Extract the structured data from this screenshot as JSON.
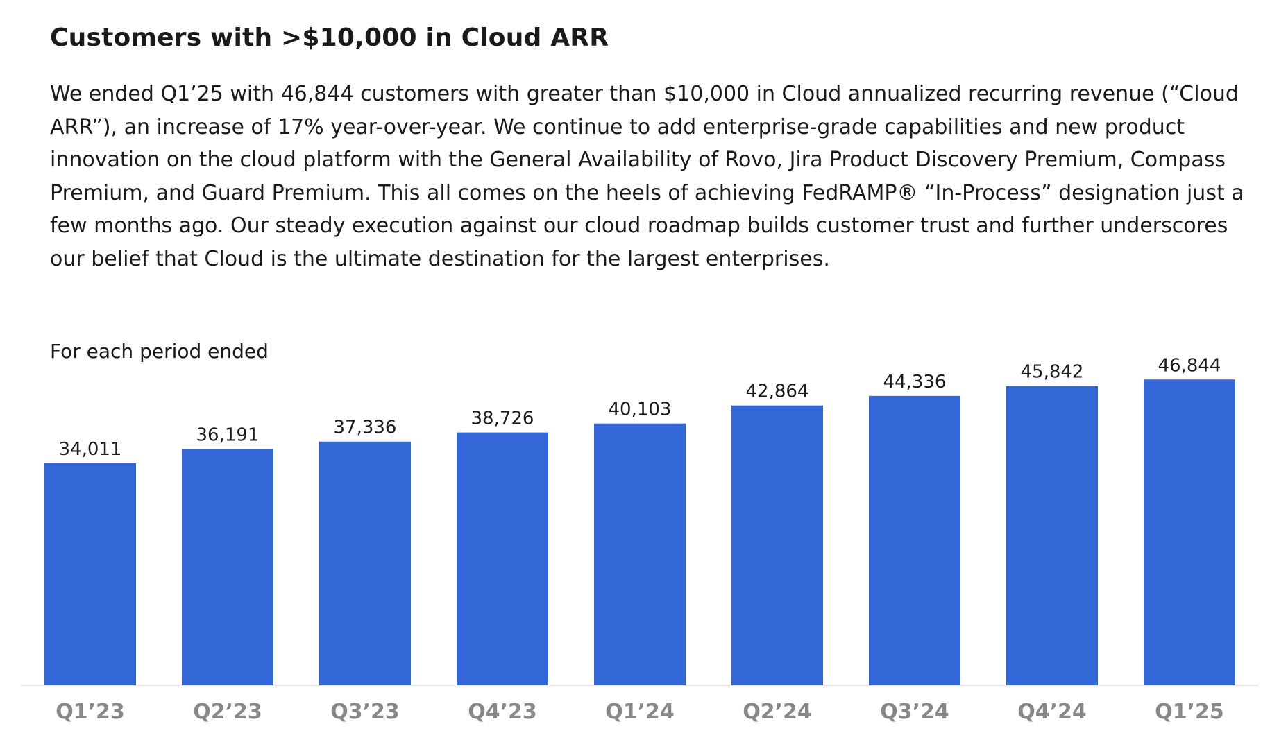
{
  "title": "Customers with >$10,000 in Cloud ARR",
  "body": "We ended Q1’25 with 46,844 customers with greater than $10,000 in Cloud annualized recurring revenue (“Cloud ARR”), an increase of 17% year-over-year. We continue to add enterprise-grade capabilities and new product innovation on the cloud platform with the General Availability of Rovo, Jira Product Discovery Premium, Compass Premium, and Guard Premium. This all comes on the heels of achieving FedRAMP® “In-Process” designation just a few months ago. Our steady execution against our cloud roadmap builds customer trust and further underscores our belief that Cloud is the ultimate destination for the largest enterprises.",
  "chart_note": "For each period ended",
  "colors": {
    "bar": "#3366d6",
    "axis": "#e6e6e6",
    "category_label": "#888888"
  },
  "chart_data": {
    "type": "bar",
    "categories": [
      "Q1’23",
      "Q2’23",
      "Q3’23",
      "Q4’23",
      "Q1’24",
      "Q2’24",
      "Q3’24",
      "Q4’24",
      "Q1’25"
    ],
    "values": [
      34011,
      36191,
      37336,
      38726,
      40103,
      42864,
      44336,
      45842,
      46844
    ],
    "value_labels": [
      "34,011",
      "36,191",
      "37,336",
      "38,726",
      "40,103",
      "42,864",
      "44,336",
      "45,842",
      "46,844"
    ],
    "ylim": [
      0,
      53000
    ],
    "grid": false,
    "legend": "none"
  }
}
